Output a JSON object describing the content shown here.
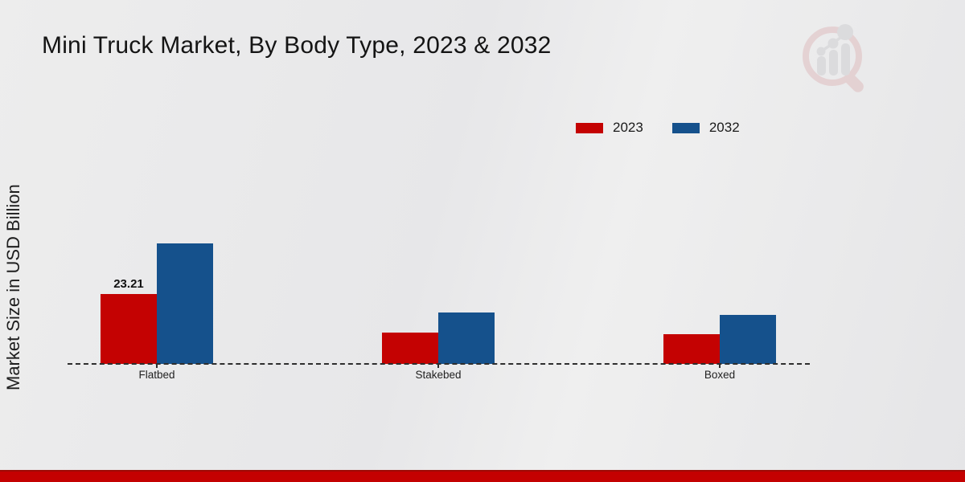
{
  "title": "Mini Truck Market, By Body Type, 2023 & 2032",
  "ylabel": "Market Size in USD Billion",
  "legend": {
    "items": [
      {
        "label": "2023",
        "color": "#c40202"
      },
      {
        "label": "2032",
        "color": "#15518c"
      }
    ]
  },
  "chart_data": {
    "type": "bar",
    "title": "Mini Truck Market, By Body Type, 2023 & 2032",
    "ylabel": "Market Size in USD Billion",
    "xlabel": "",
    "categories": [
      "Flatbed",
      "Stakebed",
      "Boxed"
    ],
    "series": [
      {
        "name": "2023",
        "color": "#c40202",
        "values": [
          23.21,
          10.4,
          9.9
        ]
      },
      {
        "name": "2032",
        "color": "#15518c",
        "values": [
          40.0,
          17.1,
          16.3
        ]
      }
    ],
    "annotations": [
      {
        "series": "2023",
        "category": "Flatbed",
        "text": "23.21"
      }
    ],
    "axis": {
      "baseline_style": "dashed",
      "gridlines": false,
      "y_ticks_visible": false
    },
    "legend_position": "top-right"
  },
  "branding": {
    "logo_name": "magnifier-bar-chart-logo",
    "accent_red": "#c40101",
    "logo_pink": "#dcb3b5",
    "logo_gray": "#c9c9cd"
  }
}
